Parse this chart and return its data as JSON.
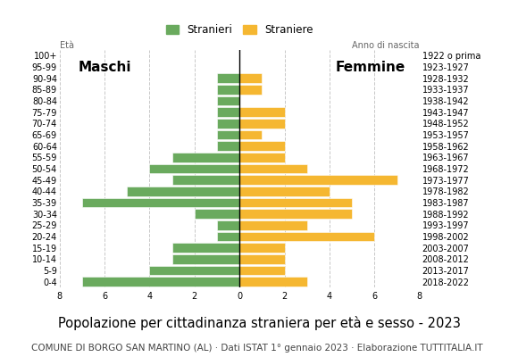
{
  "age_groups_bottom_to_top": [
    "0-4",
    "5-9",
    "10-14",
    "15-19",
    "20-24",
    "25-29",
    "30-34",
    "35-39",
    "40-44",
    "45-49",
    "50-54",
    "55-59",
    "60-64",
    "65-69",
    "70-74",
    "75-79",
    "80-84",
    "85-89",
    "90-94",
    "95-99",
    "100+"
  ],
  "birth_years_bottom_to_top": [
    "2018-2022",
    "2013-2017",
    "2008-2012",
    "2003-2007",
    "1998-2002",
    "1993-1997",
    "1988-1992",
    "1983-1987",
    "1978-1982",
    "1973-1977",
    "1968-1972",
    "1963-1967",
    "1958-1962",
    "1953-1957",
    "1948-1952",
    "1943-1947",
    "1938-1942",
    "1933-1937",
    "1928-1932",
    "1923-1927",
    "1922 o prima"
  ],
  "males_bottom_to_top": [
    7,
    4,
    3,
    3,
    1,
    1,
    2,
    7,
    5,
    3,
    4,
    3,
    1,
    1,
    1,
    1,
    1,
    1,
    1,
    0,
    0
  ],
  "females_bottom_to_top": [
    3,
    2,
    2,
    2,
    6,
    3,
    5,
    5,
    4,
    7,
    3,
    2,
    2,
    1,
    2,
    2,
    0,
    1,
    1,
    0,
    0
  ],
  "male_color": "#6aaa5e",
  "female_color": "#f5b731",
  "bar_height": 0.82,
  "xlim": 8,
  "title": "Popolazione per cittadinanza straniera per età e sesso - 2023",
  "subtitle": "COMUNE DI BORGO SAN MARTINO (AL) · Dati ISTAT 1° gennaio 2023 · Elaborazione TUTTITALIA.IT",
  "legend_male": "Stranieri",
  "legend_female": "Straniere",
  "label_maschi": "Maschi",
  "label_femmine": "Femmine",
  "label_eta": "Età",
  "label_anno": "Anno di nascita",
  "grid_color": "#c8c8c8",
  "bg_color": "#ffffff",
  "tick_fontsize": 7.0,
  "title_fontsize": 10.5,
  "subtitle_fontsize": 7.5
}
